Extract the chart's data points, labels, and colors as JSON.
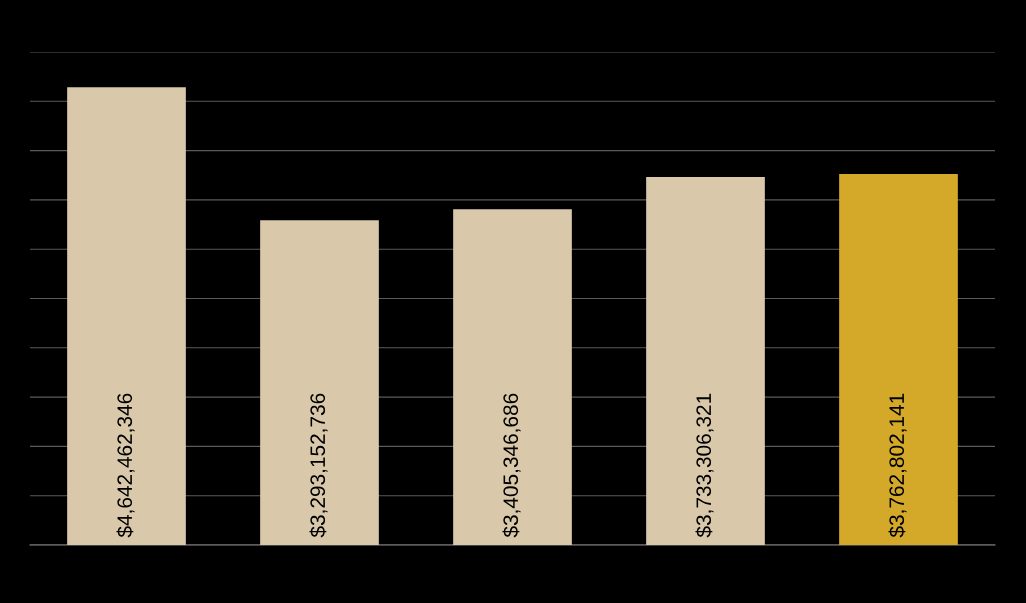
{
  "chart_data": {
    "type": "bar",
    "categories": [
      null,
      null,
      null,
      null,
      null
    ],
    "values": [
      4642462346,
      3293152736,
      3405346686,
      3733306321,
      3762802141
    ],
    "colors": [
      "#d9c9aa",
      "#d9c9aa",
      "#d9c9aa",
      "#d9c9aa",
      "#d4a92a"
    ],
    "value_labels": [
      "$4,642,462,346",
      "$3,293,152,736",
      "$3,405,346,686",
      "$3,733,306,321",
      "$3,762,802,141"
    ],
    "ylim": [
      0,
      5000000000
    ],
    "yticks": [
      {
        "value": 0,
        "label": null
      },
      {
        "value": 500000000,
        "label": null
      },
      {
        "value": 1000000000,
        "label": null
      },
      {
        "value": 1500000000,
        "label": null
      },
      {
        "value": 2000000000,
        "label": null
      },
      {
        "value": 2500000000,
        "label": null
      },
      {
        "value": 3000000000,
        "label": null
      },
      {
        "value": 3500000000,
        "label": null
      },
      {
        "value": 4000000000,
        "label": null
      },
      {
        "value": 4500000000,
        "label": null
      },
      {
        "value": 5000000000,
        "label": null
      }
    ],
    "grid": "y",
    "legend": false
  }
}
